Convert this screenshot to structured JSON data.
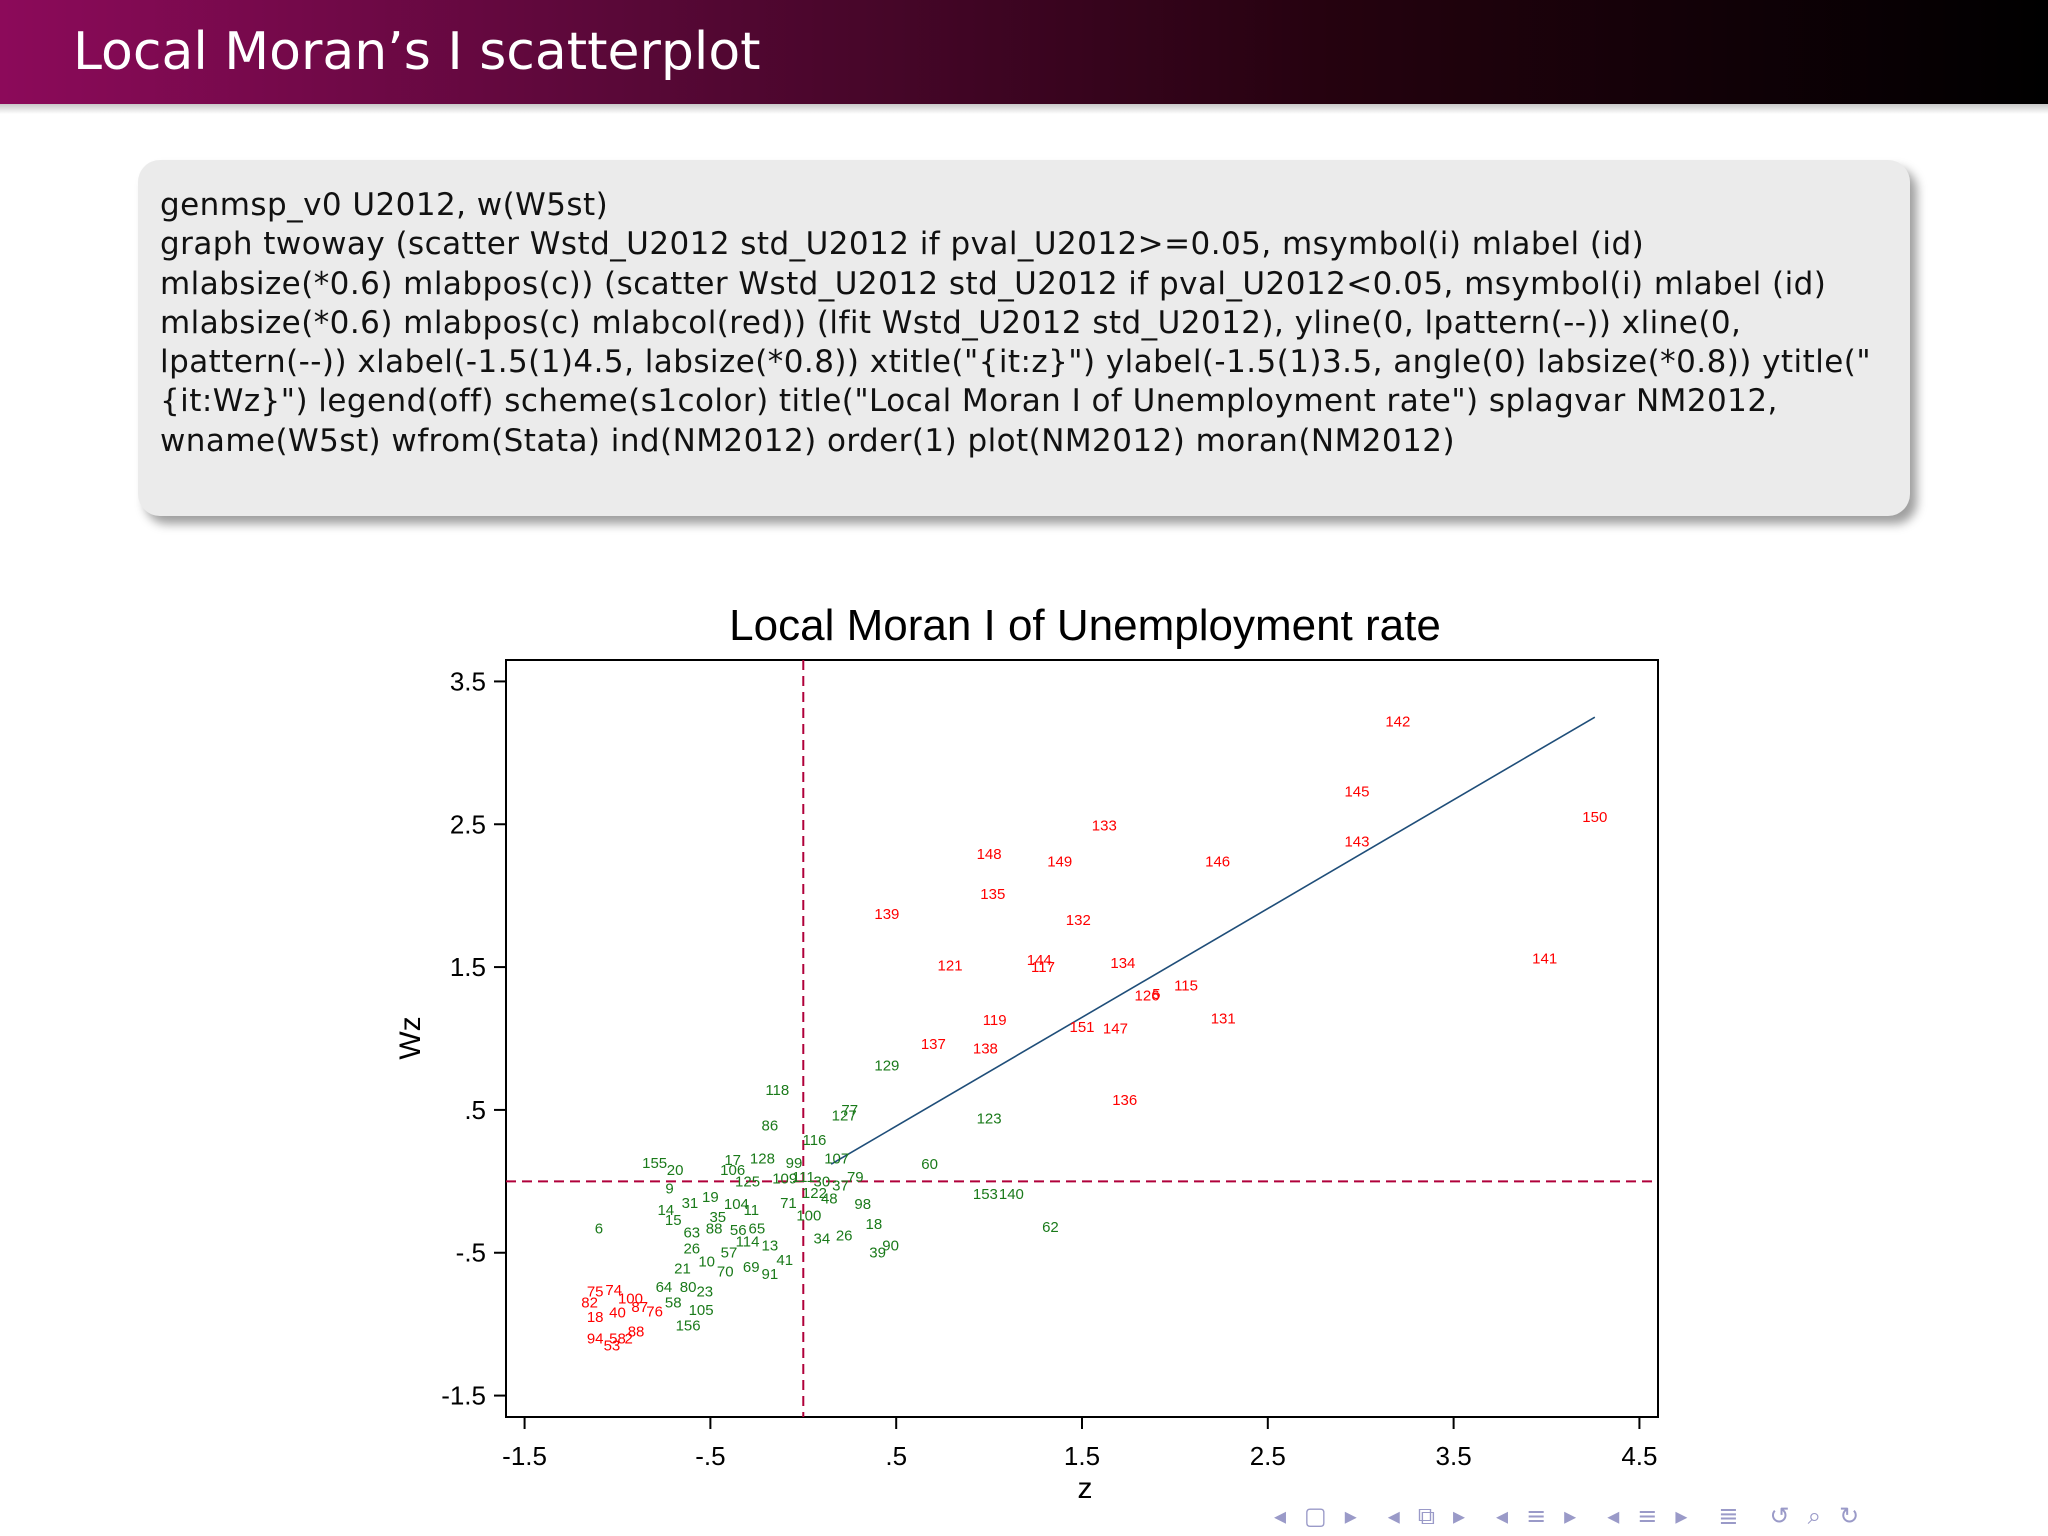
{
  "slide": {
    "title": "Local Moran’s I scatterplot",
    "code": "genmsp_v0 U2012, w(W5st)\ngraph twoway (scatter Wstd_U2012 std_U2012 if pval_U2012>=0.05, msymbol(i) mlabel (id) mlabsize(*0.6) mlabpos(c)) (scatter Wstd_U2012 std_U2012 if pval_U2012<0.05, msymbol(i) mlabel (id) mlabsize(*0.6) mlabpos(c) mlabcol(red)) (lfit Wstd_U2012 std_U2012), yline(0, lpattern(--)) xline(0, lpattern(--)) xlabel(-1.5(1)4.5, labsize(*0.8)) xtitle(\"{it:z}\") ylabel(-1.5(1)3.5, angle(0) labsize(*0.8)) ytitle(\"{it:Wz}\") legend(off) scheme(s1color) title(\"Local Moran I of Unemployment rate\") splagvar NM2012, wname(W5st) wfrom(Stata) ind(NM2012) order(1) plot(NM2012) moran(NM2012)"
  },
  "navigation": {
    "icons": [
      "nav-left-icon",
      "nav-frame-icon",
      "nav-right-icon",
      "nav-left-icon",
      "nav-subsection-icon",
      "nav-right-icon",
      "nav-left-icon",
      "nav-section-icon",
      "nav-right-icon",
      "nav-left-icon",
      "nav-section-icon",
      "nav-right-icon",
      "nav-align-icon",
      "nav-undo-icon",
      "nav-search-icon",
      "nav-redo-icon"
    ]
  },
  "chart_data": {
    "type": "scatter",
    "title": "Local Moran I of Unemployment rate",
    "xlabel": "z",
    "ylabel": "Wz",
    "xlim": [
      -1.6,
      4.6
    ],
    "ylim": [
      -1.65,
      3.65
    ],
    "xticks": [
      -1.5,
      -0.5,
      0.5,
      1.5,
      2.5,
      3.5,
      4.5
    ],
    "xtick_labels": [
      "-1.5",
      "-.5",
      ".5",
      "1.5",
      "2.5",
      "3.5",
      "4.5"
    ],
    "yticks": [
      -1.5,
      -0.5,
      0.5,
      1.5,
      2.5,
      3.5
    ],
    "ytick_labels": [
      "-1.5",
      "-.5",
      ".5",
      "1.5",
      "2.5",
      "3.5"
    ],
    "reference_lines": {
      "x": 0,
      "y": 0,
      "style": "dashed",
      "color": "#b0003a"
    },
    "fit_line": {
      "x": [
        0.15,
        4.26
      ],
      "y": [
        0.12,
        3.25
      ],
      "color": "#1f4e79"
    },
    "colors": {
      "not_significant": "#1a7a1a",
      "significant": "#ff0000"
    },
    "series": [
      {
        "name": "pval_U2012>=0.05",
        "color": "#1a7a1a",
        "points": [
          [
            -0.14,
            0.64,
            "118"
          ],
          [
            -0.18,
            0.39,
            "86"
          ],
          [
            0.45,
            0.81,
            "129"
          ],
          [
            0.22,
            0.46,
            "127"
          ],
          [
            0.25,
            0.5,
            "77"
          ],
          [
            0.06,
            0.29,
            "116"
          ],
          [
            0.18,
            0.16,
            "107"
          ],
          [
            0.68,
            0.12,
            "60"
          ],
          [
            0.98,
            -0.09,
            "153"
          ],
          [
            1.12,
            -0.09,
            "140"
          ],
          [
            1.33,
            -0.32,
            "62"
          ],
          [
            1.0,
            0.44,
            "123"
          ],
          [
            -0.8,
            0.13,
            "155"
          ],
          [
            -0.69,
            0.08,
            "20"
          ],
          [
            -0.72,
            -0.05,
            "9"
          ],
          [
            -0.38,
            0.15,
            "17"
          ],
          [
            -0.22,
            0.16,
            "128"
          ],
          [
            -0.38,
            0.08,
            "106"
          ],
          [
            -0.05,
            0.13,
            "99"
          ],
          [
            -0.5,
            -0.11,
            "19"
          ],
          [
            -0.61,
            -0.15,
            "31"
          ],
          [
            -0.74,
            -0.2,
            "14"
          ],
          [
            -0.7,
            -0.27,
            "15"
          ],
          [
            -1.1,
            -0.33,
            "6"
          ],
          [
            -0.36,
            -0.16,
            "104"
          ],
          [
            -0.28,
            -0.2,
            "11"
          ],
          [
            -0.48,
            -0.33,
            "88"
          ],
          [
            -0.35,
            -0.34,
            "56"
          ],
          [
            -0.25,
            -0.33,
            "65"
          ],
          [
            -0.6,
            -0.36,
            "63"
          ],
          [
            -0.3,
            -0.42,
            "114"
          ],
          [
            -0.6,
            -0.47,
            "26"
          ],
          [
            -0.4,
            -0.5,
            "57"
          ],
          [
            -0.52,
            -0.56,
            "10"
          ],
          [
            -0.65,
            -0.61,
            "21"
          ],
          [
            -0.18,
            -0.65,
            "91"
          ],
          [
            -0.28,
            -0.6,
            "69"
          ],
          [
            -0.42,
            -0.63,
            "70"
          ],
          [
            -0.75,
            -0.74,
            "64"
          ],
          [
            -0.62,
            -0.74,
            "80"
          ],
          [
            -0.53,
            -0.77,
            "23"
          ],
          [
            -0.7,
            -0.85,
            "58"
          ],
          [
            -0.55,
            -0.9,
            "105"
          ],
          [
            -0.62,
            -1.01,
            "156"
          ],
          [
            0.32,
            -0.16,
            "98"
          ],
          [
            0.38,
            -0.3,
            "18"
          ],
          [
            0.47,
            -0.45,
            "90"
          ],
          [
            0.4,
            -0.5,
            "39"
          ],
          [
            0.22,
            -0.38,
            "26"
          ],
          [
            0.1,
            -0.4,
            "34"
          ],
          [
            0.1,
            0.0,
            "30"
          ],
          [
            0.28,
            0.03,
            "79"
          ],
          [
            0.2,
            -0.03,
            "37"
          ],
          [
            0.03,
            -0.24,
            "100"
          ],
          [
            -0.1,
            0.02,
            "109"
          ],
          [
            0.0,
            0.03,
            "111"
          ],
          [
            -0.3,
            0.0,
            "125"
          ],
          [
            -0.08,
            -0.15,
            "71"
          ],
          [
            0.06,
            -0.08,
            "122"
          ],
          [
            0.14,
            -0.12,
            "48"
          ],
          [
            -0.18,
            -0.45,
            "13"
          ],
          [
            -0.1,
            -0.55,
            "41"
          ],
          [
            -0.46,
            -0.25,
            "35"
          ]
        ]
      },
      {
        "name": "pval_U2012<0.05",
        "color": "#ff0000",
        "points": [
          [
            3.2,
            3.22,
            "142"
          ],
          [
            2.98,
            2.73,
            "145"
          ],
          [
            4.26,
            2.55,
            "150"
          ],
          [
            1.62,
            2.49,
            "133"
          ],
          [
            1.0,
            2.29,
            "148"
          ],
          [
            1.38,
            2.24,
            "149"
          ],
          [
            2.23,
            2.24,
            "146"
          ],
          [
            2.98,
            2.38,
            "143"
          ],
          [
            1.02,
            2.01,
            "135"
          ],
          [
            1.48,
            1.83,
            "132"
          ],
          [
            0.45,
            1.87,
            "139"
          ],
          [
            3.99,
            1.56,
            "141"
          ],
          [
            0.79,
            1.51,
            "121"
          ],
          [
            1.27,
            1.55,
            "144"
          ],
          [
            1.29,
            1.5,
            "117"
          ],
          [
            1.72,
            1.53,
            "134"
          ],
          [
            2.06,
            1.37,
            "115"
          ],
          [
            1.85,
            1.3,
            "126"
          ],
          [
            1.9,
            1.31,
            "5"
          ],
          [
            2.26,
            1.14,
            "131"
          ],
          [
            1.03,
            1.13,
            "119"
          ],
          [
            1.5,
            1.08,
            "151"
          ],
          [
            1.68,
            1.07,
            "147"
          ],
          [
            0.7,
            0.96,
            "137"
          ],
          [
            0.98,
            0.93,
            "138"
          ],
          [
            1.73,
            0.57,
            "136"
          ],
          [
            -1.12,
            -0.77,
            "75"
          ],
          [
            -1.02,
            -0.76,
            "74"
          ],
          [
            -0.93,
            -0.82,
            "100"
          ],
          [
            -1.15,
            -0.85,
            "82"
          ],
          [
            -1.12,
            -0.95,
            "18"
          ],
          [
            -1.0,
            -0.92,
            "40"
          ],
          [
            -0.88,
            -0.88,
            "87"
          ],
          [
            -0.8,
            -0.91,
            "76"
          ],
          [
            -1.12,
            -1.1,
            "94"
          ],
          [
            -1.0,
            -1.1,
            "58"
          ],
          [
            -0.94,
            -1.1,
            "2"
          ],
          [
            -0.9,
            -1.05,
            "88"
          ],
          [
            -1.03,
            -1.15,
            "53"
          ]
        ]
      }
    ]
  }
}
